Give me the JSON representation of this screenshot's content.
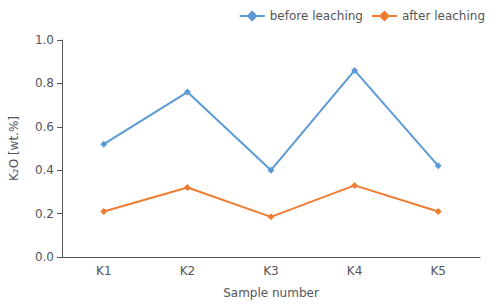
{
  "chart_data": {
    "type": "line",
    "categories": [
      "K1",
      "K2",
      "K3",
      "K4",
      "K5"
    ],
    "series": [
      {
        "name": "before leaching",
        "color": "#5B9BD5",
        "values": [
          0.52,
          0.76,
          0.4,
          0.86,
          0.42
        ]
      },
      {
        "name": "after leaching",
        "color": "#ED7D31",
        "values": [
          0.21,
          0.32,
          0.185,
          0.33,
          0.21
        ]
      }
    ],
    "xlabel": "Sample number",
    "ylabel": "K₂O [wt.%]",
    "ylim": [
      0.0,
      1.0
    ],
    "yticks": [
      {
        "value": 0,
        "label": "0.0"
      },
      0.2,
      0.4,
      0.6,
      0.8,
      {
        "value": 1,
        "label": "1.0"
      }
    ],
    "grid": false,
    "legend": "upper right",
    "marker": "diamond"
  }
}
